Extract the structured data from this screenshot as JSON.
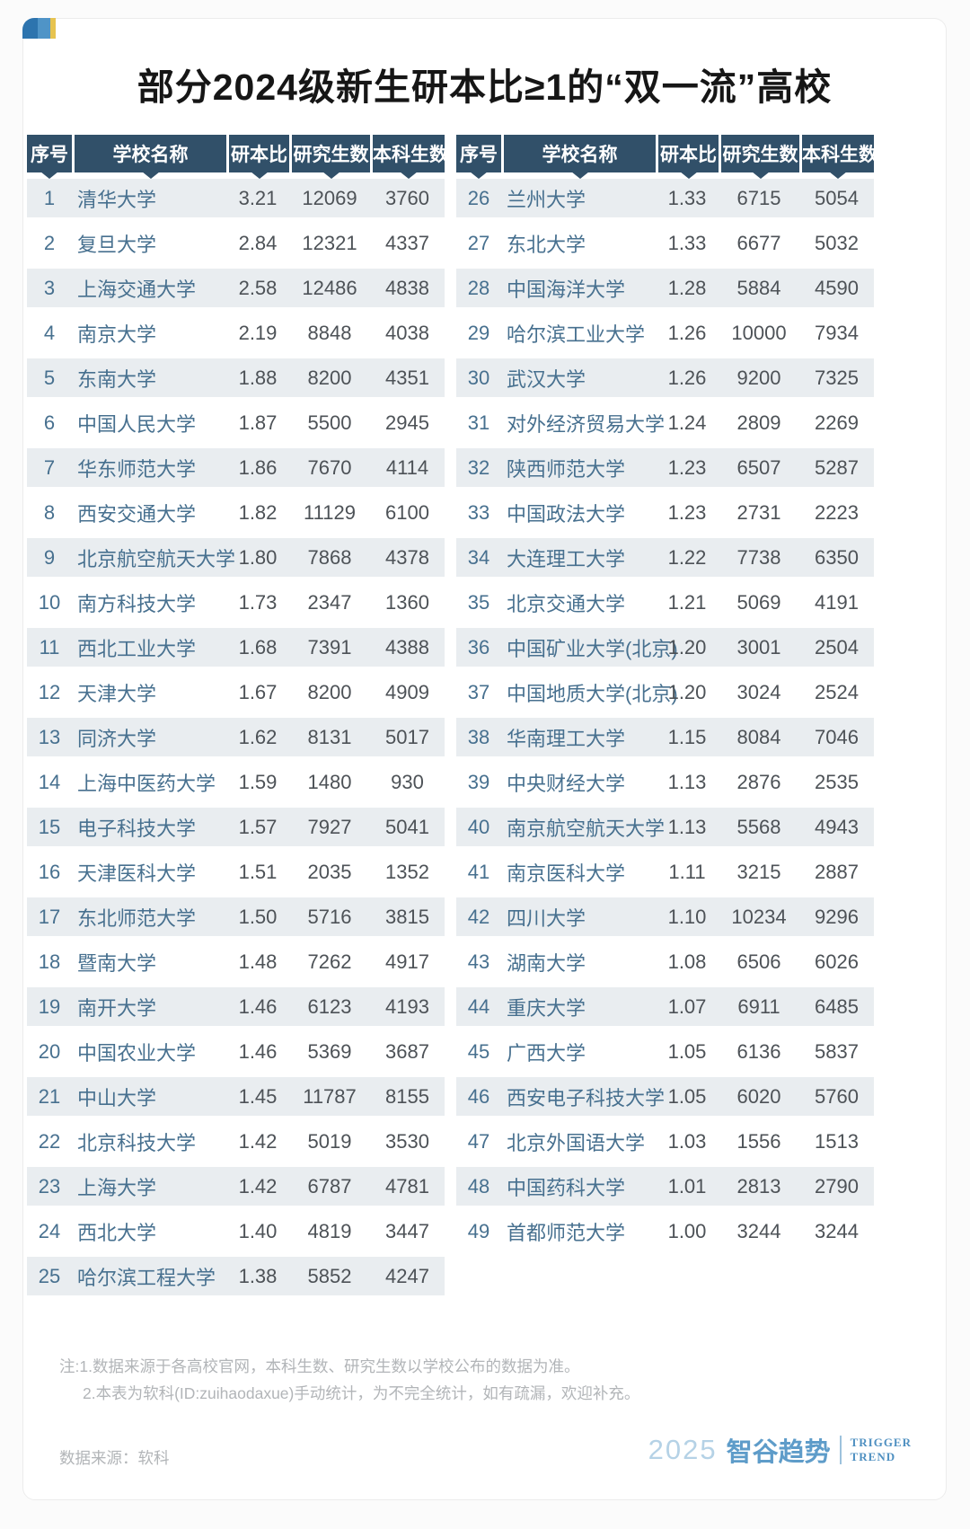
{
  "chart_data": {
    "type": "table",
    "title": "部分2024级新生研本比≥1的“双一流”高校",
    "columns": [
      "序号",
      "学校名称",
      "研本比",
      "研究生数",
      "本科生数"
    ],
    "tables": [
      {
        "rows": [
          [
            1,
            "清华大学",
            "3.21",
            12069,
            3760
          ],
          [
            2,
            "复旦大学",
            "2.84",
            12321,
            4337
          ],
          [
            3,
            "上海交通大学",
            "2.58",
            12486,
            4838
          ],
          [
            4,
            "南京大学",
            "2.19",
            8848,
            4038
          ],
          [
            5,
            "东南大学",
            "1.88",
            8200,
            4351
          ],
          [
            6,
            "中国人民大学",
            "1.87",
            5500,
            2945
          ],
          [
            7,
            "华东师范大学",
            "1.86",
            7670,
            4114
          ],
          [
            8,
            "西安交通大学",
            "1.82",
            11129,
            6100
          ],
          [
            9,
            "北京航空航天大学",
            "1.80",
            7868,
            4378
          ],
          [
            10,
            "南方科技大学",
            "1.73",
            2347,
            1360
          ],
          [
            11,
            "西北工业大学",
            "1.68",
            7391,
            4388
          ],
          [
            12,
            "天津大学",
            "1.67",
            8200,
            4909
          ],
          [
            13,
            "同济大学",
            "1.62",
            8131,
            5017
          ],
          [
            14,
            "上海中医药大学",
            "1.59",
            1480,
            930
          ],
          [
            15,
            "电子科技大学",
            "1.57",
            7927,
            5041
          ],
          [
            16,
            "天津医科大学",
            "1.51",
            2035,
            1352
          ],
          [
            17,
            "东北师范大学",
            "1.50",
            5716,
            3815
          ],
          [
            18,
            "暨南大学",
            "1.48",
            7262,
            4917
          ],
          [
            19,
            "南开大学",
            "1.46",
            6123,
            4193
          ],
          [
            20,
            "中国农业大学",
            "1.46",
            5369,
            3687
          ],
          [
            21,
            "中山大学",
            "1.45",
            11787,
            8155
          ],
          [
            22,
            "北京科技大学",
            "1.42",
            5019,
            3530
          ],
          [
            23,
            "上海大学",
            "1.42",
            6787,
            4781
          ],
          [
            24,
            "西北大学",
            "1.40",
            4819,
            3447
          ],
          [
            25,
            "哈尔滨工程大学",
            "1.38",
            5852,
            4247
          ]
        ]
      },
      {
        "rows": [
          [
            26,
            "兰州大学",
            "1.33",
            6715,
            5054
          ],
          [
            27,
            "东北大学",
            "1.33",
            6677,
            5032
          ],
          [
            28,
            "中国海洋大学",
            "1.28",
            5884,
            4590
          ],
          [
            29,
            "哈尔滨工业大学",
            "1.26",
            10000,
            7934
          ],
          [
            30,
            "武汉大学",
            "1.26",
            9200,
            7325
          ],
          [
            31,
            "对外经济贸易大学",
            "1.24",
            2809,
            2269
          ],
          [
            32,
            "陕西师范大学",
            "1.23",
            6507,
            5287
          ],
          [
            33,
            "中国政法大学",
            "1.23",
            2731,
            2223
          ],
          [
            34,
            "大连理工大学",
            "1.22",
            7738,
            6350
          ],
          [
            35,
            "北京交通大学",
            "1.21",
            5069,
            4191
          ],
          [
            36,
            "中国矿业大学(北京)",
            "1.20",
            3001,
            2504
          ],
          [
            37,
            "中国地质大学(北京)",
            "1.20",
            3024,
            2524
          ],
          [
            38,
            "华南理工大学",
            "1.15",
            8084,
            7046
          ],
          [
            39,
            "中央财经大学",
            "1.13",
            2876,
            2535
          ],
          [
            40,
            "南京航空航天大学",
            "1.13",
            5568,
            4943
          ],
          [
            41,
            "南京医科大学",
            "1.11",
            3215,
            2887
          ],
          [
            42,
            "四川大学",
            "1.10",
            10234,
            9296
          ],
          [
            43,
            "湖南大学",
            "1.08",
            6506,
            6026
          ],
          [
            44,
            "重庆大学",
            "1.07",
            6911,
            6485
          ],
          [
            45,
            "广西大学",
            "1.05",
            6136,
            5837
          ],
          [
            46,
            "西安电子科技大学",
            "1.05",
            6020,
            5760
          ],
          [
            47,
            "北京外国语大学",
            "1.03",
            1556,
            1513
          ],
          [
            48,
            "中国药科大学",
            "1.01",
            2813,
            2790
          ],
          [
            49,
            "首都师范大学",
            "1.00",
            3244,
            3244
          ]
        ]
      }
    ]
  },
  "footer": {
    "notes": [
      "注:1.数据来源于各高校官网，本科生数、研究生数以学校公布的数据为准。",
      "2.本表为软科(ID:zuihaodaxue)手动统计，为不完全统计，如有疏漏，欢迎补充。"
    ],
    "source": "数据来源：软科",
    "logo": {
      "year": "2025",
      "brand": "智谷趋势",
      "tagline": [
        "TRIGGER",
        "TREND"
      ]
    }
  },
  "colors": {
    "header_bg": "#315069",
    "row_stripe": "#e9edf0",
    "name_text": "#47708f",
    "number_text": "#4d5257",
    "note_text": "#b2b5b8",
    "logo_blue": "#5e9cc9",
    "badge_dark_blue": "#2d74ae",
    "badge_light_blue": "#4f94c7",
    "badge_yellow": "#e7c34f"
  }
}
